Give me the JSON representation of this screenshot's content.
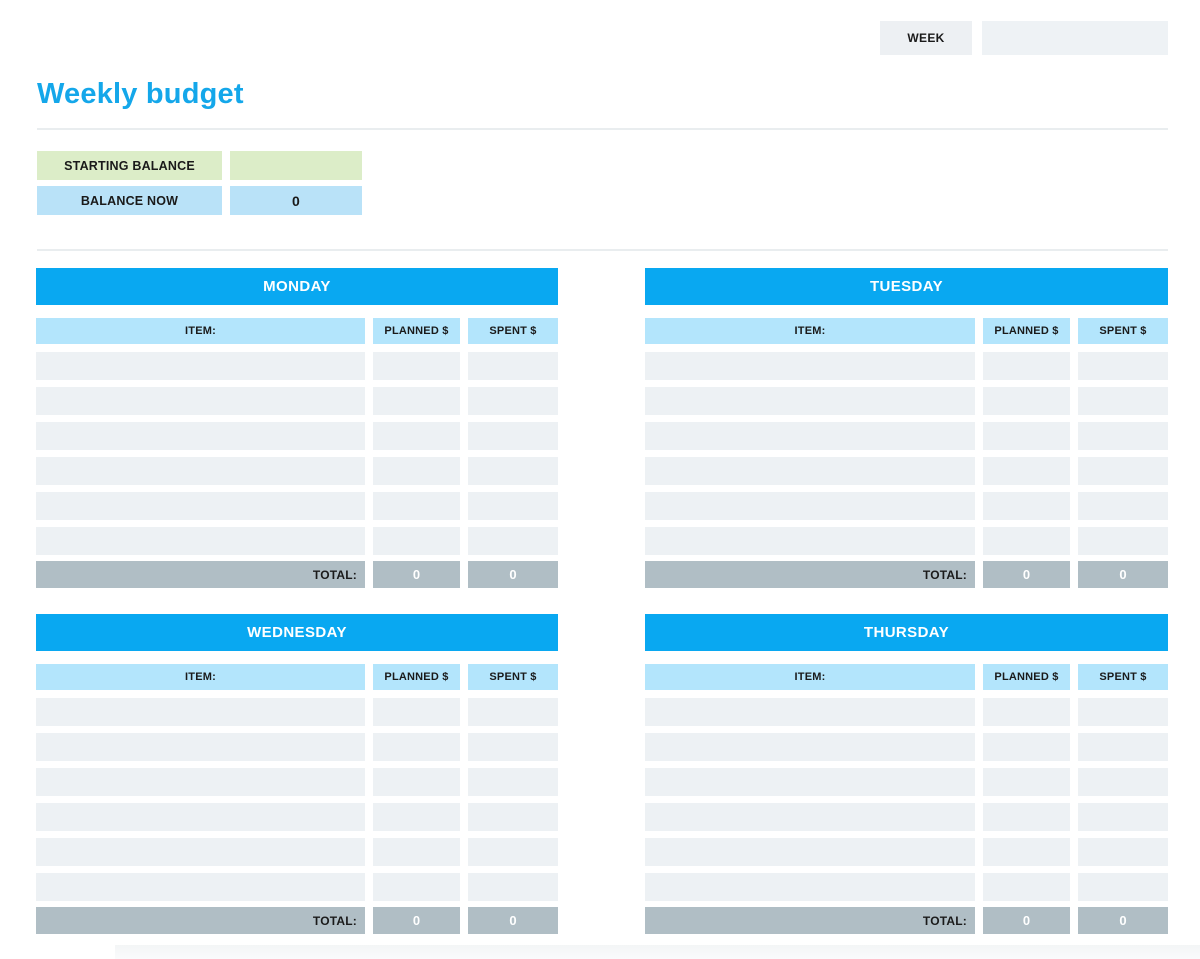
{
  "header": {
    "week_label": "WEEK",
    "week_value": ""
  },
  "title": "Weekly budget",
  "balance": {
    "starting_label": "STARTING BALANCE",
    "starting_value": "",
    "now_label": "BALANCE NOW",
    "now_value": "0"
  },
  "tables": {
    "columns": {
      "item": "ITEM:",
      "planned": "PLANNED $",
      "spent": "SPENT $"
    },
    "total_label": "TOTAL:",
    "rows_per_day": 6,
    "days": [
      {
        "name": "MONDAY",
        "totals": {
          "planned": "0",
          "spent": "0"
        }
      },
      {
        "name": "TUESDAY",
        "totals": {
          "planned": "0",
          "spent": "0"
        }
      },
      {
        "name": "WEDNESDAY",
        "totals": {
          "planned": "0",
          "spent": "0"
        }
      },
      {
        "name": "THURSDAY",
        "totals": {
          "planned": "0",
          "spent": "0"
        }
      }
    ]
  },
  "colors": {
    "accent_blue": "#09a8f1",
    "light_blue": "#b3e5fc",
    "light_green": "#dcedc8",
    "row_gray": "#edf1f4",
    "total_gray": "#b0bec5",
    "title_blue": "#14a7ea",
    "box_gray": "#eef2f5"
  }
}
